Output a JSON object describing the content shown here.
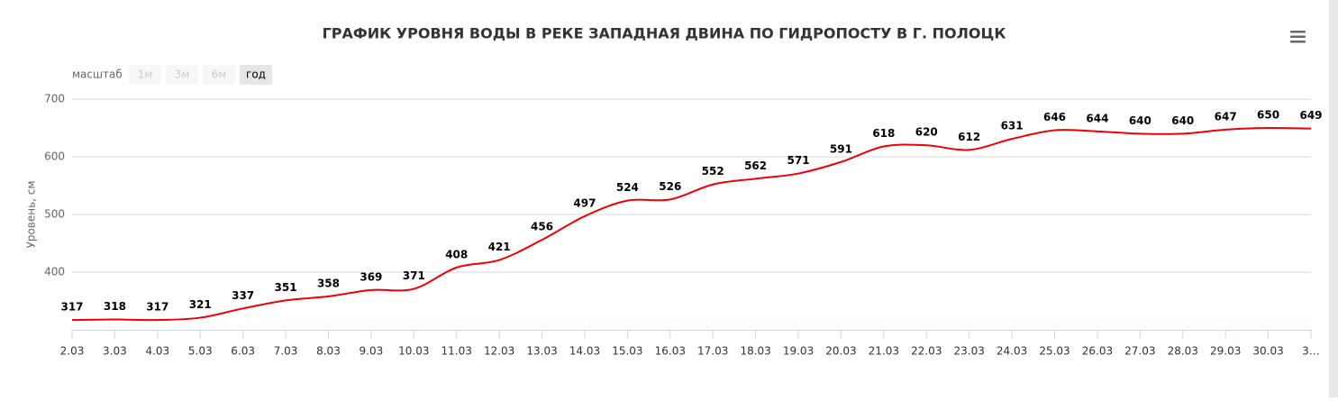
{
  "chart_data": {
    "type": "line",
    "title": "ГРАФИК УРОВНЯ ВОДЫ В РЕКЕ ЗАПАДНАЯ ДВИНА ПО ГИДРОПОСТУ В Г. ПОЛОЦК",
    "y_label": "Уровень, см",
    "range_selector": {
      "label": "масштаб",
      "buttons": [
        "1м",
        "3м",
        "6м",
        "год"
      ],
      "active": 3
    },
    "categories": [
      "2.03",
      "3.03",
      "4.03",
      "5.03",
      "6.03",
      "7.03",
      "8.03",
      "9.03",
      "10.03",
      "11.03",
      "12.03",
      "13.03",
      "14.03",
      "15.03",
      "16.03",
      "17.03",
      "18.03",
      "19.03",
      "20.03",
      "21.03",
      "22.03",
      "23.03",
      "24.03",
      "25.03",
      "26.03",
      "27.03",
      "28.03",
      "29.03",
      "30.03",
      "3…"
    ],
    "values": [
      317,
      318,
      317,
      321,
      337,
      351,
      358,
      369,
      371,
      408,
      421,
      456,
      497,
      524,
      526,
      552,
      562,
      571,
      591,
      618,
      620,
      612,
      631,
      646,
      644,
      640,
      640,
      647,
      650,
      649
    ],
    "color": "#e8000b",
    "ylim": [
      300,
      700
    ],
    "yticks": [
      400,
      500,
      600,
      700
    ],
    "grid": true
  }
}
